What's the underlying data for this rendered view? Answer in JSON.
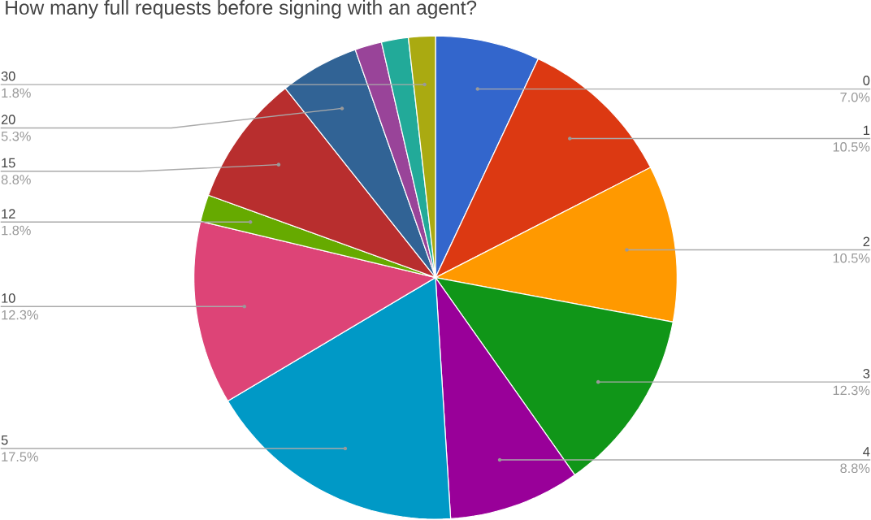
{
  "chart_data": {
    "type": "pie",
    "title": "How many full requests before signing with an agent?",
    "categories": [
      "0",
      "1",
      "2",
      "3",
      "4",
      "5",
      "10",
      "12",
      "15",
      "20",
      null,
      null,
      "30"
    ],
    "values": [
      7.0,
      10.5,
      10.5,
      12.3,
      8.8,
      17.5,
      12.3,
      1.8,
      8.8,
      5.3,
      1.8,
      1.8,
      1.8
    ],
    "value_labels": [
      "7.0%",
      "10.5%",
      "10.5%",
      "12.3%",
      "8.8%",
      "17.5%",
      "12.3%",
      "1.8%",
      "8.8%",
      "5.3%",
      null,
      null,
      "1.8%"
    ],
    "colors": [
      "#3366cc",
      "#dc3912",
      "#ff9900",
      "#109618",
      "#990099",
      "#0099c6",
      "#dd4477",
      "#66aa00",
      "#b82e2e",
      "#316395",
      "#994499",
      "#22aa99",
      "#aaaa11"
    ]
  }
}
